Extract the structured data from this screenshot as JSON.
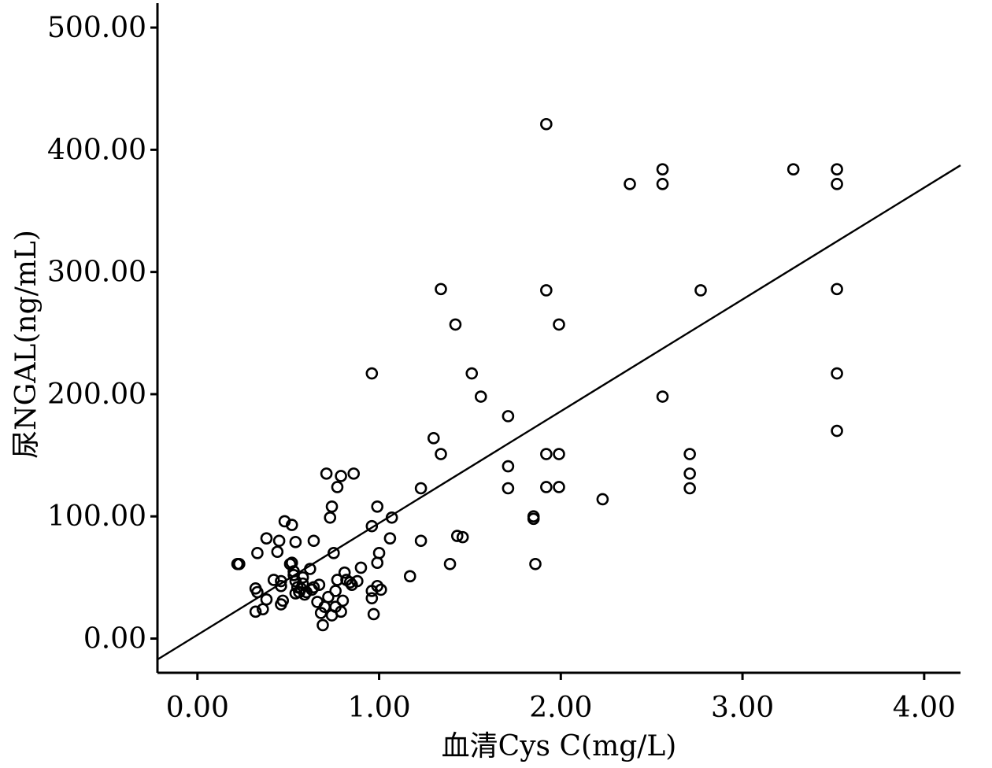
{
  "chart_data": {
    "type": "scatter",
    "xlabel": "血清Cys C(mg/L)",
    "ylabel": "尿NGAL(ng/mL)",
    "xlim": [
      -0.22,
      4.2
    ],
    "ylim": [
      -28,
      520
    ],
    "x_ticks": [
      0,
      1,
      2,
      3,
      4
    ],
    "x_tick_labels": [
      "0.00",
      "1.00",
      "2.00",
      "3.00",
      "4.00"
    ],
    "y_ticks": [
      0,
      100,
      200,
      300,
      400,
      500
    ],
    "y_tick_labels": [
      "0.00",
      "100.00",
      "200.00",
      "300.00",
      "400.00",
      "500.00"
    ],
    "grid": false,
    "fit_line": {
      "slope": 91.5,
      "intercept": 3.0
    },
    "points": [
      [
        0.22,
        61
      ],
      [
        0.23,
        61
      ],
      [
        0.32,
        41
      ],
      [
        0.33,
        38
      ],
      [
        0.32,
        22
      ],
      [
        0.36,
        24
      ],
      [
        0.33,
        70
      ],
      [
        0.38,
        82
      ],
      [
        0.38,
        32
      ],
      [
        0.42,
        48
      ],
      [
        0.44,
        71
      ],
      [
        0.45,
        80
      ],
      [
        0.46,
        47
      ],
      [
        0.46,
        43
      ],
      [
        0.46,
        28
      ],
      [
        0.47,
        31
      ],
      [
        0.48,
        96
      ],
      [
        0.51,
        61
      ],
      [
        0.52,
        62
      ],
      [
        0.52,
        93
      ],
      [
        0.53,
        55
      ],
      [
        0.53,
        52
      ],
      [
        0.54,
        79
      ],
      [
        0.54,
        47
      ],
      [
        0.55,
        42
      ],
      [
        0.54,
        37
      ],
      [
        0.56,
        38
      ],
      [
        0.57,
        41
      ],
      [
        0.58,
        45
      ],
      [
        0.58,
        50
      ],
      [
        0.59,
        36
      ],
      [
        0.6,
        38
      ],
      [
        0.62,
        57
      ],
      [
        0.63,
        40
      ],
      [
        0.64,
        42
      ],
      [
        0.64,
        80
      ],
      [
        0.66,
        30
      ],
      [
        0.67,
        44
      ],
      [
        0.68,
        21
      ],
      [
        0.69,
        11
      ],
      [
        0.7,
        26
      ],
      [
        0.71,
        135
      ],
      [
        0.72,
        34
      ],
      [
        0.73,
        99
      ],
      [
        0.74,
        108
      ],
      [
        0.74,
        19
      ],
      [
        0.75,
        70
      ],
      [
        0.76,
        26
      ],
      [
        0.76,
        39
      ],
      [
        0.77,
        48
      ],
      [
        0.77,
        124
      ],
      [
        0.79,
        133
      ],
      [
        0.79,
        22
      ],
      [
        0.8,
        31
      ],
      [
        0.81,
        54
      ],
      [
        0.82,
        48
      ],
      [
        0.84,
        46
      ],
      [
        0.85,
        44
      ],
      [
        0.86,
        135
      ],
      [
        0.88,
        47
      ],
      [
        0.9,
        58
      ],
      [
        0.96,
        217
      ],
      [
        0.96,
        92
      ],
      [
        0.96,
        39
      ],
      [
        0.96,
        33
      ],
      [
        0.97,
        20
      ],
      [
        0.99,
        108
      ],
      [
        0.99,
        62
      ],
      [
        0.99,
        43
      ],
      [
        1.0,
        70
      ],
      [
        1.01,
        40
      ],
      [
        1.06,
        82
      ],
      [
        1.07,
        99
      ],
      [
        1.17,
        51
      ],
      [
        1.23,
        123
      ],
      [
        1.23,
        80
      ],
      [
        1.3,
        164
      ],
      [
        1.34,
        151
      ],
      [
        1.34,
        286
      ],
      [
        1.39,
        61
      ],
      [
        1.42,
        257
      ],
      [
        1.43,
        84
      ],
      [
        1.46,
        83
      ],
      [
        1.51,
        217
      ],
      [
        1.56,
        198
      ],
      [
        1.71,
        182
      ],
      [
        1.71,
        141
      ],
      [
        1.71,
        123
      ],
      [
        1.85,
        100
      ],
      [
        1.85,
        98
      ],
      [
        1.86,
        61
      ],
      [
        1.92,
        421
      ],
      [
        1.92,
        285
      ],
      [
        1.92,
        151
      ],
      [
        1.92,
        124
      ],
      [
        1.99,
        257
      ],
      [
        1.99,
        151
      ],
      [
        1.99,
        124
      ],
      [
        2.23,
        114
      ],
      [
        2.38,
        372
      ],
      [
        2.56,
        384
      ],
      [
        2.56,
        372
      ],
      [
        2.56,
        198
      ],
      [
        2.71,
        151
      ],
      [
        2.71,
        135
      ],
      [
        2.71,
        123
      ],
      [
        2.77,
        285
      ],
      [
        3.28,
        384
      ],
      [
        3.52,
        384
      ],
      [
        3.52,
        372
      ],
      [
        3.52,
        286
      ],
      [
        3.52,
        217
      ],
      [
        3.52,
        170
      ]
    ]
  }
}
